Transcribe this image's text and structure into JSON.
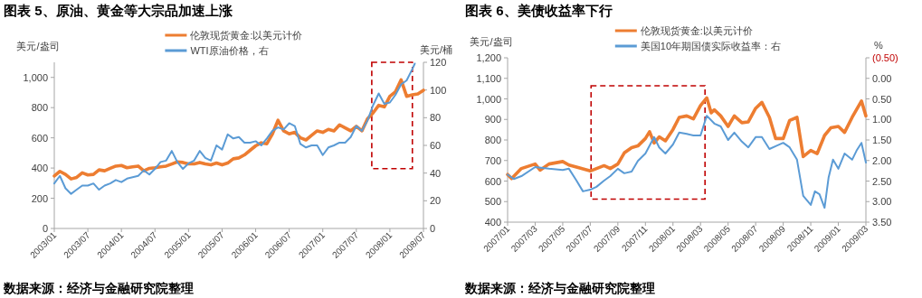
{
  "chart_data": [
    {
      "type": "line",
      "title": "图表 5、原油、黄金等大宗品加速上涨",
      "ylabel": "美元/盎司",
      "y2label": "美元/桶",
      "legend": "top",
      "grid": false,
      "xlim": [
        "2003-01",
        "2008-07"
      ],
      "xticks": [
        {
          "value": "2003-01",
          "label": "2003/01"
        },
        {
          "value": "2003-07",
          "label": "2003/07"
        },
        {
          "value": "2004-01",
          "label": "2004/01"
        },
        {
          "value": "2004-07",
          "label": "2004/07"
        },
        {
          "value": "2005-01",
          "label": "2005/01"
        },
        {
          "value": "2005-07",
          "label": "2005/07"
        },
        {
          "value": "2006-01",
          "label": "2006/01"
        },
        {
          "value": "2006-07",
          "label": "2006/07"
        },
        {
          "value": "2007-01",
          "label": "2007/01"
        },
        {
          "value": "2007-07",
          "label": "2007/07"
        },
        {
          "value": "2008-01",
          "label": "2008/01"
        },
        {
          "value": "2008-07",
          "label": "2008/07"
        }
      ],
      "ylim": [
        0,
        1100
      ],
      "yticks": [
        0,
        200,
        400,
        600,
        800,
        {
          "value": 1000,
          "label": "1,000"
        }
      ],
      "y2lim": [
        0,
        120
      ],
      "y2ticks": [
        0,
        20,
        40,
        60,
        80,
        100,
        120
      ],
      "series": [
        {
          "name": "伦敦现货黄金:以美元计价",
          "color": "#ed7d31",
          "x": [
            "2003-01",
            "2003-02",
            "2003-03",
            "2003-04",
            "2003-05",
            "2003-06",
            "2003-07",
            "2003-08",
            "2003-09",
            "2003-10",
            "2003-11",
            "2003-12",
            "2004-01",
            "2004-02",
            "2004-03",
            "2004-04",
            "2004-05",
            "2004-06",
            "2004-07",
            "2004-08",
            "2004-09",
            "2004-10",
            "2004-11",
            "2004-12",
            "2005-01",
            "2005-02",
            "2005-03",
            "2005-04",
            "2005-05",
            "2005-06",
            "2005-07",
            "2005-08",
            "2005-09",
            "2005-10",
            "2005-11",
            "2005-12",
            "2006-01",
            "2006-02",
            "2006-03",
            "2006-04",
            "2006-05",
            "2006-06",
            "2006-07",
            "2006-08",
            "2006-09",
            "2006-10",
            "2006-11",
            "2006-12",
            "2007-01",
            "2007-02",
            "2007-03",
            "2007-04",
            "2007-05",
            "2007-06",
            "2007-07",
            "2007-08",
            "2007-09",
            "2007-10",
            "2007-11",
            "2007-12",
            "2008-01",
            "2008-02",
            "2008-03",
            "2008-04",
            "2008-05",
            "2008-06",
            "2008-07"
          ],
          "values": [
            348,
            378,
            358,
            328,
            338,
            368,
            354,
            358,
            388,
            382,
            398,
            413,
            417,
            402,
            408,
            413,
            382,
            398,
            402,
            408,
            413,
            427,
            441,
            437,
            427,
            427,
            437,
            427,
            421,
            433,
            421,
            433,
            461,
            467,
            487,
            517,
            547,
            567,
            561,
            626,
            716,
            646,
            626,
            636,
            600,
            586,
            616,
            646,
            636,
            656,
            646,
            686,
            666,
            646,
            676,
            646,
            726,
            765,
            815,
            805,
            875,
            905,
            984,
            875,
            885,
            891,
            915
          ]
        },
        {
          "name": "WTI原油价格，右",
          "color": "#5b9bd5",
          "axis": "y2",
          "x": [
            "2003-01",
            "2003-02",
            "2003-03",
            "2003-04",
            "2003-05",
            "2003-06",
            "2003-07",
            "2003-08",
            "2003-09",
            "2003-10",
            "2003-11",
            "2003-12",
            "2004-01",
            "2004-02",
            "2004-03",
            "2004-04",
            "2004-05",
            "2004-06",
            "2004-07",
            "2004-08",
            "2004-09",
            "2004-10",
            "2004-11",
            "2004-12",
            "2005-01",
            "2005-02",
            "2005-03",
            "2005-04",
            "2005-05",
            "2005-06",
            "2005-07",
            "2005-08",
            "2005-09",
            "2005-10",
            "2005-11",
            "2005-12",
            "2006-01",
            "2006-02",
            "2006-03",
            "2006-04",
            "2006-05",
            "2006-06",
            "2006-07",
            "2006-08",
            "2006-09",
            "2006-10",
            "2006-11",
            "2006-12",
            "2007-01",
            "2007-02",
            "2007-03",
            "2007-04",
            "2007-05",
            "2007-06",
            "2007-07",
            "2007-08",
            "2007-09",
            "2007-10",
            "2007-11",
            "2007-12",
            "2008-01",
            "2008-02",
            "2008-03",
            "2008-04",
            "2008-05-01",
            "2008-05-15"
          ],
          "values": [
            32.5,
            38,
            29,
            25,
            28,
            31,
            31,
            32.5,
            28,
            31,
            32.5,
            35,
            33.5,
            36,
            37,
            38,
            42,
            39,
            43,
            48,
            49,
            56,
            48,
            43,
            47,
            49,
            56,
            51,
            49,
            60,
            57,
            68,
            65,
            66,
            62,
            62,
            63,
            60,
            65,
            70.5,
            73,
            71.5,
            76,
            74,
            61,
            58.5,
            60,
            60,
            53,
            58.5,
            60,
            62,
            62,
            66,
            74,
            70.5,
            78,
            89,
            97.5,
            90,
            91,
            96.5,
            104,
            107,
            115,
            119
          ]
        }
      ],
      "annotations": [
        "数据来源：经济与金融研究院整理"
      ]
    },
    {
      "type": "line",
      "title": "图表 6、美债收益率下行",
      "ylabel": "美元/盎司",
      "y2label": "%",
      "legend": "top",
      "grid": false,
      "xlim": [
        "2007-01",
        "2009-03"
      ],
      "xticks": [
        {
          "value": "2007-01",
          "label": "2007/01"
        },
        {
          "value": "2007-03",
          "label": "2007/03"
        },
        {
          "value": "2007-05",
          "label": "2007/05"
        },
        {
          "value": "2007-07",
          "label": "2007/07"
        },
        {
          "value": "2007-09",
          "label": "2007/09"
        },
        {
          "value": "2007-11",
          "label": "2007/11"
        },
        {
          "value": "2008-01",
          "label": "2008/01"
        },
        {
          "value": "2008-03",
          "label": "2008/03"
        },
        {
          "value": "2008-05",
          "label": "2008/05"
        },
        {
          "value": "2008-07",
          "label": "2008/07"
        },
        {
          "value": "2008-09",
          "label": "2008/09"
        },
        {
          "value": "2008-11",
          "label": "2008/11"
        },
        {
          "value": "2009-01",
          "label": "2009/01"
        },
        {
          "value": "2009-03",
          "label": "2009/03"
        }
      ],
      "ylim": [
        400,
        1200
      ],
      "yticks": [
        400,
        500,
        600,
        700,
        800,
        900,
        {
          "value": 1000,
          "label": "1,000"
        },
        {
          "value": 1100,
          "label": "1,100"
        },
        {
          "value": 1200,
          "label": "1,200"
        }
      ],
      "y2lim": [
        3.5,
        -0.5
      ],
      "y2ticks": [
        {
          "value": -0.5,
          "label": "(0.50)"
        },
        {
          "value": 0,
          "label": "0.00"
        },
        {
          "value": 0.5,
          "label": "0.50"
        },
        {
          "value": 1,
          "label": "1.00"
        },
        {
          "value": 1.5,
          "label": "1.50"
        },
        {
          "value": 2,
          "label": "2.00"
        },
        {
          "value": 2.5,
          "label": "2.50"
        },
        {
          "value": 3,
          "label": "3.00"
        },
        {
          "value": 3.5,
          "label": "3.50"
        }
      ],
      "series": [
        {
          "name": "伦敦现货黄金:以美元计价",
          "color": "#ed7d31",
          "x": [
            "2007-01-01",
            "2007-01-10",
            "2007-02-01",
            "2007-03-01",
            "2007-03-12",
            "2007-04-01",
            "2007-05-01",
            "2007-05-15",
            "2007-06-01",
            "2007-07-01",
            "2007-08-01",
            "2007-08-15",
            "2007-09-01",
            "2007-09-15",
            "2007-10-01",
            "2007-10-15",
            "2007-11-01",
            "2007-11-10",
            "2007-11-20",
            "2007-12-01",
            "2007-12-15",
            "2008-01-01",
            "2008-01-15",
            "2008-02-01",
            "2008-02-15",
            "2008-03-01",
            "2008-03-15",
            "2008-03-25",
            "2008-04-01",
            "2008-04-15",
            "2008-05-01",
            "2008-05-15",
            "2008-06-01",
            "2008-06-15",
            "2008-07-01",
            "2008-07-15",
            "2008-08-01",
            "2008-08-15",
            "2008-09-01",
            "2008-09-15",
            "2008-10-01",
            "2008-10-15",
            "2008-11-01",
            "2008-11-15",
            "2008-12-01",
            "2008-12-15",
            "2009-01-01",
            "2009-01-15",
            "2009-02-01",
            "2009-02-20",
            "2009-03-01"
          ],
          "values": [
            632,
            612,
            661,
            683,
            653,
            683,
            695,
            678,
            668,
            649,
            675,
            661,
            683,
            737,
            763,
            771,
            807,
            840,
            785,
            815,
            796,
            851,
            910,
            917,
            903,
            968,
            1005,
            932,
            947,
            917,
            866,
            917,
            884,
            888,
            954,
            983,
            910,
            807,
            807,
            895,
            910,
            719,
            749,
            734,
            822,
            859,
            866,
            837,
            910,
            990,
            917
          ]
        },
        {
          "name": "美国10年期国债实际收益率：右",
          "color": "#5b9bd5",
          "axis": "y2",
          "x": [
            "2007-01-01",
            "2007-01-15",
            "2007-02-01",
            "2007-03-01",
            "2007-04-01",
            "2007-05-01",
            "2007-05-15",
            "2007-06-01",
            "2007-06-15",
            "2007-07-01",
            "2007-07-15",
            "2007-08-01",
            "2007-08-15",
            "2007-09-01",
            "2007-09-15",
            "2007-10-01",
            "2007-10-15",
            "2007-11-01",
            "2007-11-20",
            "2007-12-01",
            "2007-12-15",
            "2008-01-01",
            "2008-01-15",
            "2008-02-01",
            "2008-02-15",
            "2008-03-01",
            "2008-03-15",
            "2008-04-01",
            "2008-04-15",
            "2008-05-01",
            "2008-05-15",
            "2008-06-01",
            "2008-06-15",
            "2008-07-01",
            "2008-07-15",
            "2008-08-01",
            "2008-08-15",
            "2008-09-01",
            "2008-09-15",
            "2008-10-01",
            "2008-10-15",
            "2008-11-01",
            "2008-11-10",
            "2008-11-20",
            "2008-12-01",
            "2008-12-10",
            "2008-12-20",
            "2009-01-01",
            "2009-01-15",
            "2009-02-01",
            "2009-02-10",
            "2009-02-20",
            "2009-03-01"
          ],
          "values": [
            2.34,
            2.45,
            2.38,
            2.16,
            2.2,
            2.23,
            2.2,
            2.49,
            2.75,
            2.71,
            2.64,
            2.49,
            2.38,
            2.2,
            2.31,
            2.27,
            2.01,
            1.83,
            1.43,
            1.68,
            1.83,
            1.61,
            1.32,
            1.35,
            1.39,
            1.39,
            0.91,
            1.1,
            1.17,
            1.5,
            1.32,
            1.54,
            1.68,
            1.43,
            1.43,
            1.72,
            1.65,
            1.57,
            1.68,
            1.98,
            2.86,
            3.08,
            2.75,
            2.82,
            3.15,
            2.42,
            1.98,
            2.2,
            1.83,
            1.98,
            1.76,
            1.57,
            2.05
          ]
        }
      ],
      "annotations": [
        "数据来源：经济与金融研究院整理"
      ]
    }
  ]
}
